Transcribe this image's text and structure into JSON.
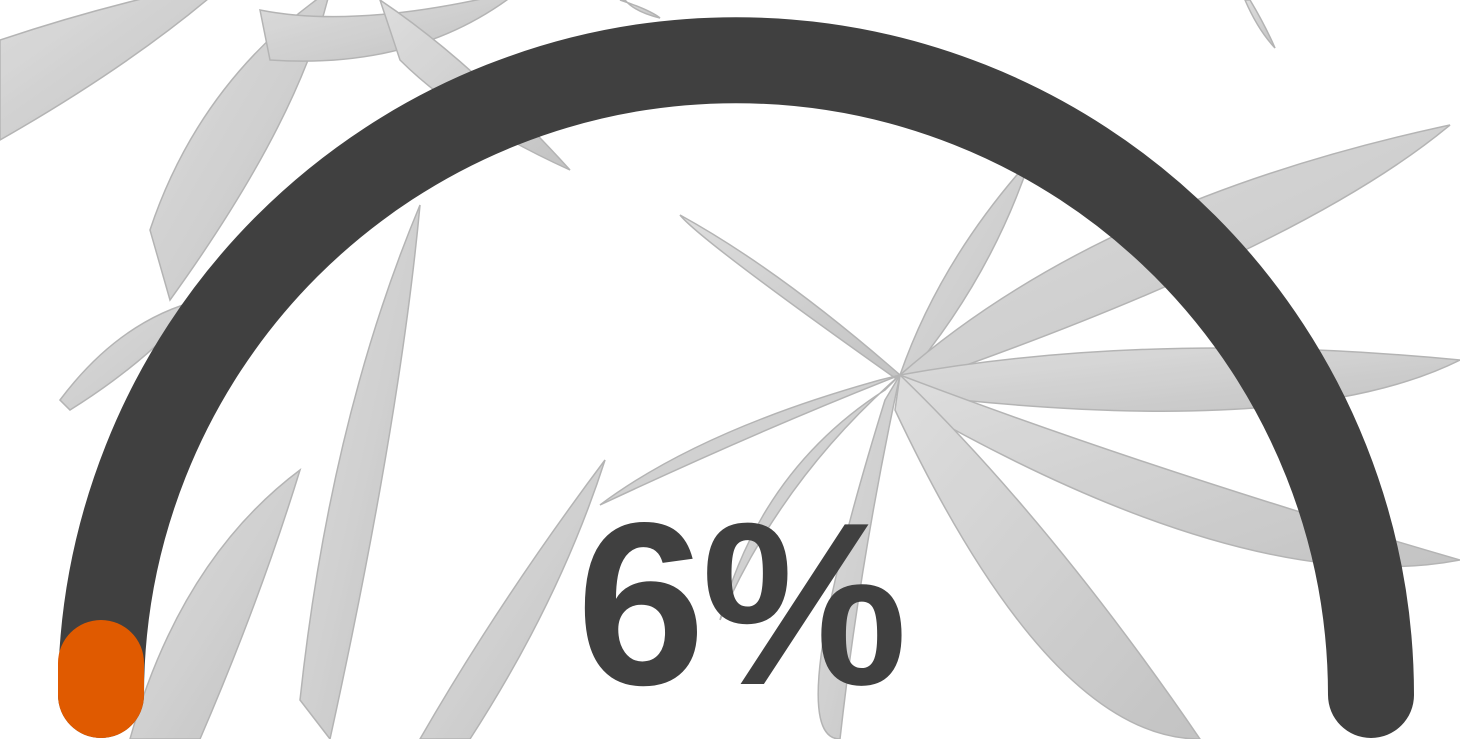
{
  "gauge": {
    "value_percent": 6,
    "display_text": "6%",
    "track_color": "#404040",
    "fill_color": "#e05a00",
    "text_color": "#404040"
  },
  "background": {
    "motif": "leaf-pattern",
    "leaf_color": "#c9c9c9"
  }
}
